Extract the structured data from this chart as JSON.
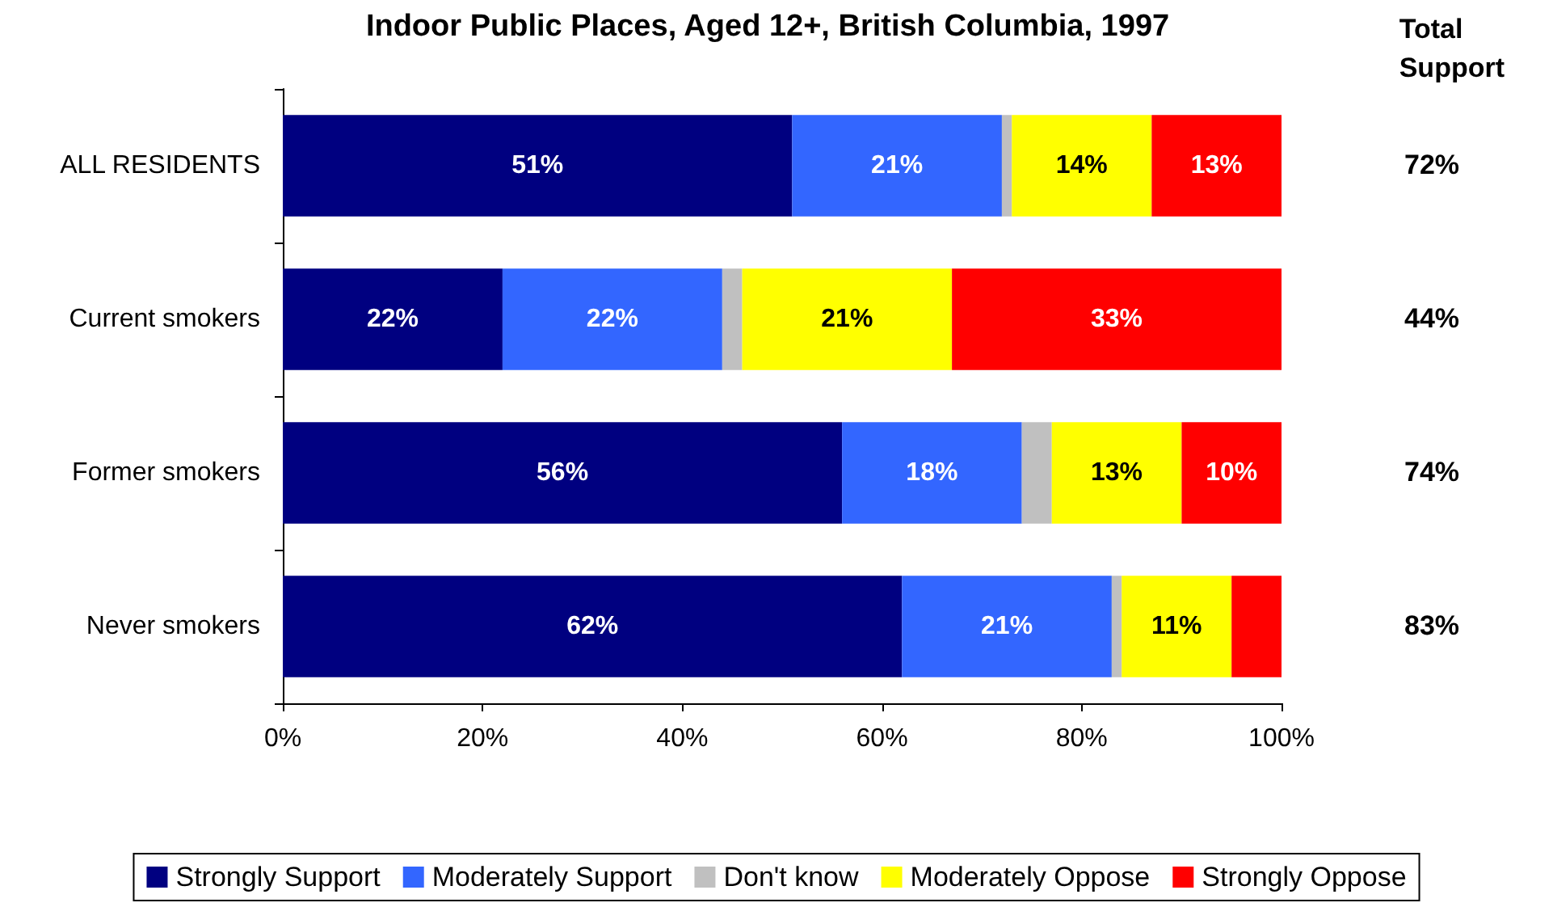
{
  "chart_data": {
    "type": "bar",
    "orientation": "horizontal",
    "stacked": true,
    "title": "Indoor Public Places, Aged 12+, British Columbia, 1997",
    "categories": [
      "ALL RESIDENTS",
      "Current smokers",
      "Former smokers",
      "Never smokers"
    ],
    "series": [
      {
        "name": "Strongly Support",
        "color": "#000080",
        "values": [
          51,
          22,
          56,
          62
        ],
        "value_labels": [
          "51%",
          "22%",
          "56%",
          "62%"
        ]
      },
      {
        "name": "Moderately Support",
        "color": "#3366ff",
        "values": [
          21,
          22,
          18,
          21
        ],
        "value_labels": [
          "21%",
          "22%",
          "18%",
          "21%"
        ]
      },
      {
        "name": "Don't know",
        "color": "#c0c0c0",
        "values": [
          1,
          2,
          3,
          1
        ],
        "value_labels": [
          null,
          null,
          null,
          null
        ]
      },
      {
        "name": "Moderately Oppose",
        "color": "#ffff00",
        "values": [
          14,
          21,
          13,
          11
        ],
        "value_labels": [
          "14%",
          "21%",
          "13%",
          "11%"
        ]
      },
      {
        "name": "Strongly Oppose",
        "color": "#ff0000",
        "values": [
          13,
          33,
          10,
          5
        ],
        "value_labels": [
          "13%",
          "33%",
          "10%",
          null
        ]
      }
    ],
    "xlim": [
      0,
      100
    ],
    "xticks": [
      {
        "value": 0,
        "label": "0%"
      },
      {
        "value": 20,
        "label": "20%"
      },
      {
        "value": 40,
        "label": "40%"
      },
      {
        "value": 60,
        "label": "60%"
      },
      {
        "value": 80,
        "label": "80%"
      },
      {
        "value": 100,
        "label": "100%"
      }
    ],
    "annotations": [
      "Total\nSupport",
      "72%",
      "44%",
      "74%",
      "83%"
    ],
    "grid": false,
    "legend": "bottom"
  }
}
